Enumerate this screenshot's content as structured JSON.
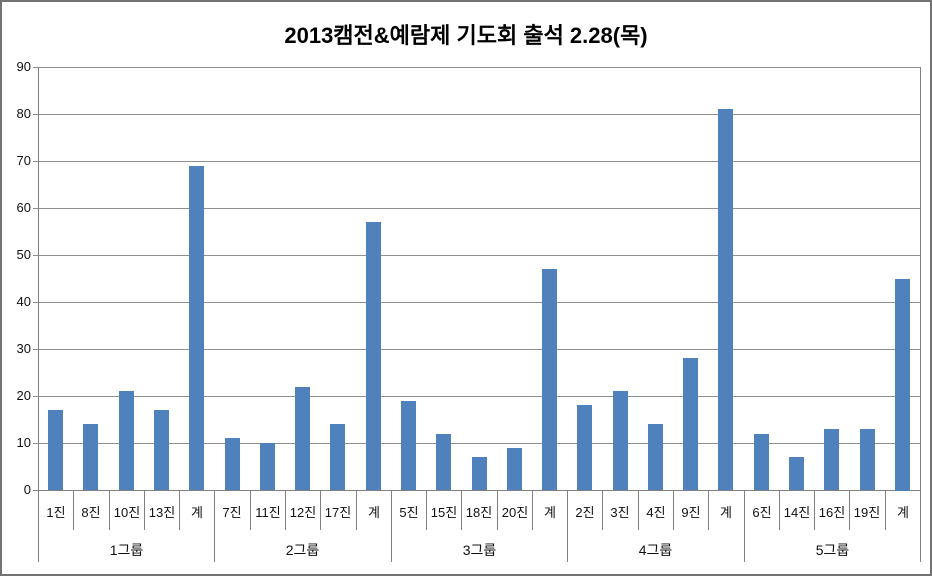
{
  "title": "2013캠전&예람제 기도회 출석 2.28(목)",
  "chart_data": {
    "type": "bar",
    "title": "2013캠전&예람제 기도회 출석 2.28(목)",
    "ylabel": "",
    "xlabel": "",
    "ylim": [
      0,
      90
    ],
    "y_ticks": [
      0,
      10,
      20,
      30,
      40,
      50,
      60,
      70,
      80,
      90
    ],
    "grid": true,
    "legend_position": "none",
    "groups": [
      {
        "label": "1그룹",
        "categories": [
          "1진",
          "8진",
          "10진",
          "13진",
          "계"
        ],
        "values": [
          17,
          14,
          21,
          17,
          69
        ]
      },
      {
        "label": "2그룹",
        "categories": [
          "7진",
          "11진",
          "12진",
          "17진",
          "계"
        ],
        "values": [
          11,
          10,
          22,
          14,
          57
        ]
      },
      {
        "label": "3그룹",
        "categories": [
          "5진",
          "15진",
          "18진",
          "20진",
          "계"
        ],
        "values": [
          19,
          12,
          7,
          9,
          47
        ]
      },
      {
        "label": "4그룹",
        "categories": [
          "2진",
          "3진",
          "4진",
          "9진",
          "계"
        ],
        "values": [
          18,
          21,
          14,
          28,
          81
        ]
      },
      {
        "label": "5그룹",
        "categories": [
          "6진",
          "14진",
          "16진",
          "19진",
          "계"
        ],
        "values": [
          12,
          7,
          13,
          13,
          45
        ]
      }
    ],
    "colors": {
      "bar": "#4F81BD",
      "gridline": "#909090",
      "axis_line": "#808080",
      "text": "#111111",
      "background": "#FFFFFF",
      "outer_border": "#737373"
    }
  }
}
